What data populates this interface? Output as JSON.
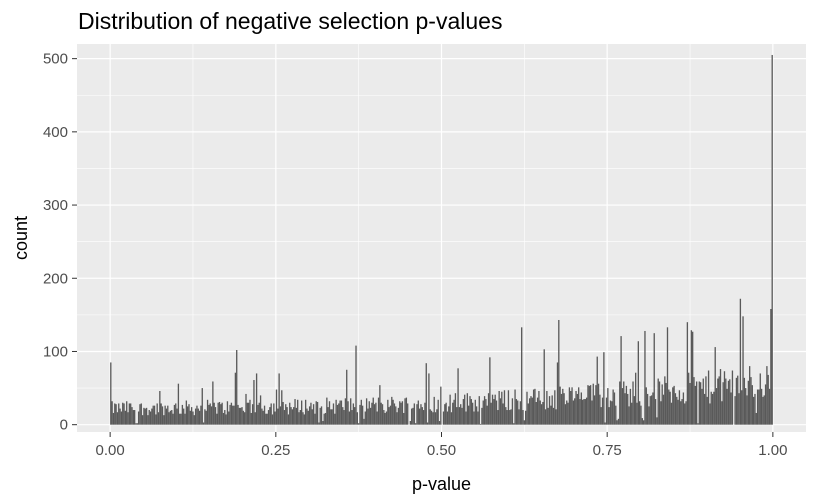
{
  "chart_data": {
    "type": "bar",
    "title": "Distribution of negative selection p-values",
    "xlabel": "p-value",
    "ylabel": "count",
    "xlim": [
      -0.05,
      1.05
    ],
    "ylim": [
      -10,
      520
    ],
    "x_ticks": [
      0.0,
      0.25,
      0.5,
      0.75,
      1.0
    ],
    "x_tick_labels": [
      "0.00",
      "0.25",
      "0.50",
      "0.75",
      "1.00"
    ],
    "y_ticks": [
      0,
      100,
      200,
      300,
      400,
      500
    ],
    "y_tick_labels": [
      "0",
      "100",
      "200",
      "300",
      "400",
      "500"
    ],
    "grid": true,
    "background": "#ebebeb",
    "bar_color": "#595959",
    "bin_width": 0.002,
    "bins": 500,
    "distribution_summary": "counts ~20-35 near 0, rising gradually to ~50-80 near 0.95-0.99, with scattered spikes up to ~170 and a final bin at 1.00 of ~505",
    "notable_bins": [
      {
        "x": 0.0,
        "count": 85
      },
      {
        "x": 0.19,
        "count": 102
      },
      {
        "x": 0.37,
        "count": 108
      },
      {
        "x": 0.62,
        "count": 133
      },
      {
        "x": 0.675,
        "count": 143
      },
      {
        "x": 0.84,
        "count": 133
      },
      {
        "x": 0.87,
        "count": 140
      },
      {
        "x": 0.95,
        "count": 172
      },
      {
        "x": 0.998,
        "count": 155
      },
      {
        "x": 1.0,
        "count": 505
      }
    ]
  }
}
